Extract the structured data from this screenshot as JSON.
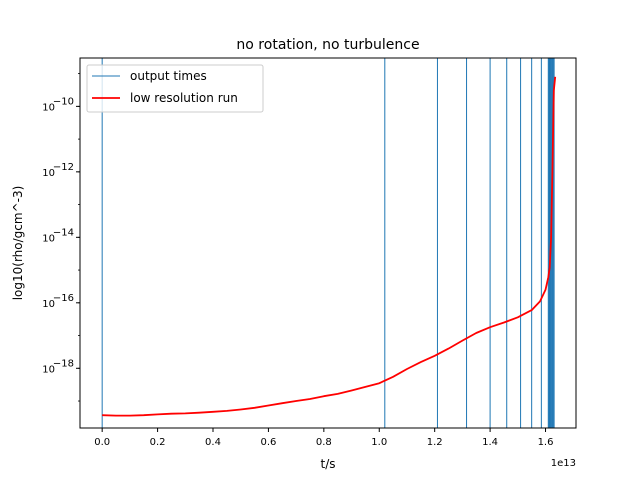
{
  "chart_data": {
    "type": "line",
    "title": "no rotation, no turbulence",
    "xlabel": "t/s",
    "ylabel": "log10(rho/gcm^-3)",
    "x_offset_label": "1e13",
    "x_scale": "linear",
    "y_scale": "log",
    "xlim": [
      -800000000000.0,
      17100000000000.0
    ],
    "ylim": [
      1.5e-20,
      3e-09
    ],
    "x_ticks": [
      0,
      2000000000000.0,
      4000000000000.0,
      6000000000000.0,
      8000000000000.0,
      10000000000000.0,
      12000000000000.0,
      14000000000000.0,
      16000000000000.0
    ],
    "x_tick_labels": [
      "0.0",
      "0.2",
      "0.4",
      "0.6",
      "0.8",
      "1.0",
      "1.2",
      "1.4",
      "1.6"
    ],
    "y_ticks": [
      1e-18,
      1e-16,
      1e-14,
      1e-12,
      1e-10
    ],
    "y_tick_labels": [
      "10",
      "10",
      "10",
      "10",
      "10"
    ],
    "y_tick_exponents": [
      "−18",
      "−16",
      "−14",
      "−12",
      "−10"
    ],
    "grid": false,
    "legend_position": "top-left",
    "series": [
      {
        "name": "output times",
        "kind": "vlines",
        "color": "#1f77b4",
        "x": [
          0,
          10200000000000.0,
          12100000000000.0,
          13150000000000.0,
          14000000000000.0,
          14600000000000.0,
          15100000000000.0,
          15500000000000.0,
          15850000000000.0,
          16100000000000.0,
          16130000000000.0,
          16160000000000.0,
          16190000000000.0,
          16220000000000.0,
          16250000000000.0,
          16280000000000.0,
          16310000000000.0
        ]
      },
      {
        "name": "low resolution run",
        "kind": "line",
        "color": "#ff0000",
        "x": [
          0,
          500000000000.0,
          1000000000000.0,
          1500000000000.0,
          2000000000000.0,
          2500000000000.0,
          3000000000000.0,
          3500000000000.0,
          4000000000000.0,
          4500000000000.0,
          5000000000000.0,
          5500000000000.0,
          6000000000000.0,
          6500000000000.0,
          7000000000000.0,
          7500000000000.0,
          8000000000000.0,
          8500000000000.0,
          9000000000000.0,
          9500000000000.0,
          10000000000000.0,
          10500000000000.0,
          11000000000000.0,
          11500000000000.0,
          12000000000000.0,
          12500000000000.0,
          13000000000000.0,
          13500000000000.0,
          14000000000000.0,
          14500000000000.0,
          15000000000000.0,
          15500000000000.0,
          15800000000000.0,
          16000000000000.0,
          16100000000000.0,
          16150000000000.0,
          16200000000000.0,
          16250000000000.0,
          16300000000000.0,
          16350000000000.0
        ],
        "y": [
          3.7e-20,
          3.6e-20,
          3.6e-20,
          3.7e-20,
          3.9e-20,
          4.1e-20,
          4.2e-20,
          4.4e-20,
          4.7e-20,
          5e-20,
          5.5e-20,
          6.2e-20,
          7.3e-20,
          8.6e-20,
          1e-19,
          1.15e-19,
          1.4e-19,
          1.65e-19,
          2.1e-19,
          2.7e-19,
          3.5e-19,
          5.5e-19,
          9.5e-19,
          1.55e-18,
          2.4e-18,
          4e-18,
          7e-18,
          1.2e-17,
          1.8e-17,
          2.5e-17,
          3.6e-17,
          6e-17,
          1.1e-16,
          2.5e-16,
          6e-16,
          1.2e-15,
          1e-14,
          1e-12,
          3e-10,
          8e-10
        ]
      }
    ]
  }
}
